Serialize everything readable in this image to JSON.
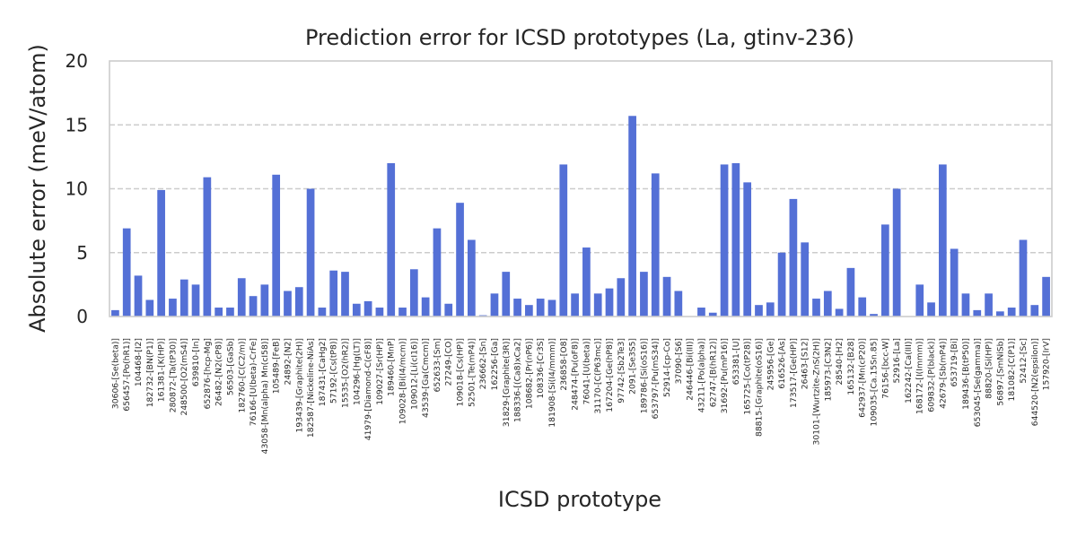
{
  "chart_data": {
    "type": "bar",
    "title": "Prediction error for ICSD prototypes (La, gtinv-236)",
    "xlabel": "ICSD prototype",
    "ylabel": "Absolute error (meV/atom)",
    "ylim": [
      0,
      20
    ],
    "yticks": [
      0,
      5,
      10,
      15,
      20
    ],
    "grid": "horizontal dashed",
    "bar_color": "#5470d6",
    "categories": [
      "30606-[Se(beta)]",
      "656457-[Po(hR1)]",
      "104468-[I2]",
      "182732-[BN(P1)]",
      "161381-[K(HP)]",
      "280872-[Ta(tP30)]",
      "248500-[O2(mS4)]",
      "639810-[In]",
      "652876-[hcp-Mg]",
      "26482-[N2(cP8)]",
      "56503-[GaSb]",
      "182760-[C(C2/m)]",
      "76166-[U(beta)-CrFe]",
      "43058-[Mn(alpha) Mn(cI58)]",
      "105489-[FeB]",
      "24892-[N2]",
      "193439-[Graphite(2H)]",
      "182587-[Nickeline-NiAs]",
      "187431-[CaHg2]",
      "57192-[Cs(tP8)]",
      "15535-[O2(hR2)]",
      "104296-[Hg(LT)]",
      "41979-[Diamond-C(cF8)]",
      "109027-[Sr(HP)]",
      "189460-[MnP]",
      "109028-[Bi(I4/mcm)]",
      "109012-[Li(cI16)]",
      "43539-[Ga(Cmcm)]",
      "652633-[Sm]",
      "27249-[CO]",
      "109018-[Cs(HP)]",
      "52501-[Te(mP4)]",
      "236662-[Sn]",
      "162256-[Ga]",
      "31829-[Graphite(3R)]",
      "188336-[(Ca8)xCa2]",
      "108682-[Pr(nP6)]",
      "108336-[Cr3S]",
      "181908-[Si(I4/mmm)]",
      "236858-[O8]",
      "248474-[Pu(oF8)]",
      "76041-[U(beta)]",
      "31170-[C(P63mc)]",
      "167204-[Ge(hP8)]",
      "97742-[Sb2Te3]",
      "2091-[Se3S5]",
      "189786-[Si(oS16)]",
      "653797-[Pu(mS34)]",
      "52914-[cp-Co]",
      "37090-[S6]",
      "246446-[Bi(III)]",
      "43211-[Po(alpha)]",
      "62747-[B(hR12)]",
      "31692-[Pu(mP16)]",
      "653381-[U]",
      "165725-[Co(tP28)]",
      "88815-[Graphite(oS16)]",
      "245956-[Ge]",
      "616526-[As]",
      "173517-[Ge(HP)]",
      "26463-[S12]",
      "30101-[Wurtzite-ZnS(2H)]",
      "185973-[C3N2]",
      "28540-[H2]",
      "165132-[B28]",
      "642937-[Mn(cP20)]",
      "109035-[Ca.15Sn.85]",
      "76156-[bcc-W]",
      "52916-[La]",
      "162242-[Ca(III)]",
      "168172-[I(Immm)]",
      "609832-[P(black)]",
      "42679-[Sb(mP4)]",
      "653719-[Bi]",
      "189436-[B(tP50)]",
      "653045-[Se(gamma)]",
      "88820-[Si(HP)]",
      "56897-[SmNiSb]",
      "181082-[C(P1)]",
      "52412-[Sc]",
      "644520-[N2(epsilon)]",
      "157920-[IrV]"
    ],
    "values": [
      0.5,
      6.9,
      3.2,
      1.3,
      9.9,
      1.4,
      2.9,
      2.5,
      10.9,
      0.7,
      0.7,
      3.0,
      1.6,
      2.5,
      11.1,
      2.0,
      2.3,
      10.0,
      0.7,
      3.6,
      3.5,
      1.0,
      1.2,
      0.7,
      12.0,
      0.7,
      3.7,
      1.5,
      6.9,
      1.0,
      8.9,
      6.0,
      0.1,
      1.8,
      3.5,
      1.4,
      0.9,
      1.4,
      1.3,
      11.9,
      1.8,
      5.4,
      1.8,
      2.2,
      3.0,
      15.7,
      3.5,
      11.2,
      3.1,
      2.0,
      0.0,
      0.7,
      0.3,
      11.9,
      12.0,
      10.5,
      0.9,
      1.1,
      5.0,
      9.2,
      5.8,
      1.4,
      2.0,
      0.6,
      3.8,
      1.5,
      0.2,
      7.2,
      10.0,
      0.0,
      2.5,
      1.1,
      11.9,
      5.3,
      1.8,
      0.5,
      1.8,
      0.4,
      0.7,
      6.0,
      0.9,
      3.1
    ]
  }
}
